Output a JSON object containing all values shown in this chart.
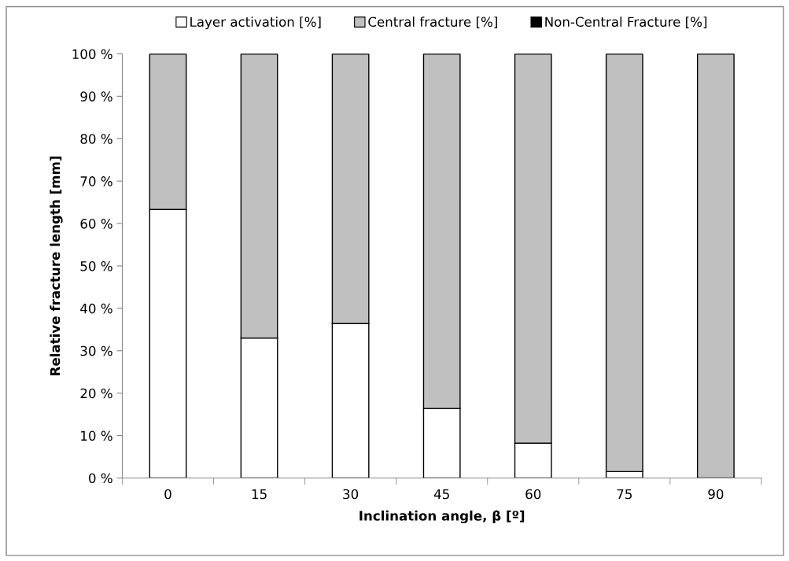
{
  "chart_data": {
    "type": "bar",
    "stacked": true,
    "xlabel": "Inclination angle, β [º]",
    "ylabel": "Relative fracture length [mm]",
    "categories": [
      "0",
      "15",
      "30",
      "45",
      "60",
      "75",
      "90"
    ],
    "series": [
      {
        "name": "Layer activation [%]",
        "color": "#ffffff",
        "values": [
          63.3,
          33,
          36.4,
          16.4,
          8.2,
          1.5,
          0
        ]
      },
      {
        "name": "Central fracture [%]",
        "color": "#c0c0c0",
        "values": [
          36.7,
          67,
          63.6,
          83.6,
          91.8,
          98.5,
          100
        ]
      },
      {
        "name": "Non-Central Fracture [%]",
        "color": "#000000",
        "values": [
          0,
          0,
          0,
          0,
          0,
          0,
          0
        ]
      }
    ],
    "ylim": [
      0,
      100
    ],
    "yticks": [
      {
        "value": 0,
        "label": "0 %"
      },
      {
        "value": 10,
        "label": "10 %"
      },
      {
        "value": 20,
        "label": "20 %"
      },
      {
        "value": 30,
        "label": "30 %"
      },
      {
        "value": 40,
        "label": "40 %"
      },
      {
        "value": 50,
        "label": "50 %"
      },
      {
        "value": 60,
        "label": "60 %"
      },
      {
        "value": 70,
        "label": "70 %"
      },
      {
        "value": 80,
        "label": "80 %"
      },
      {
        "value": 90,
        "label": "90 %"
      },
      {
        "value": 100,
        "label": "100 %"
      }
    ],
    "grid": false,
    "legend": "top"
  }
}
